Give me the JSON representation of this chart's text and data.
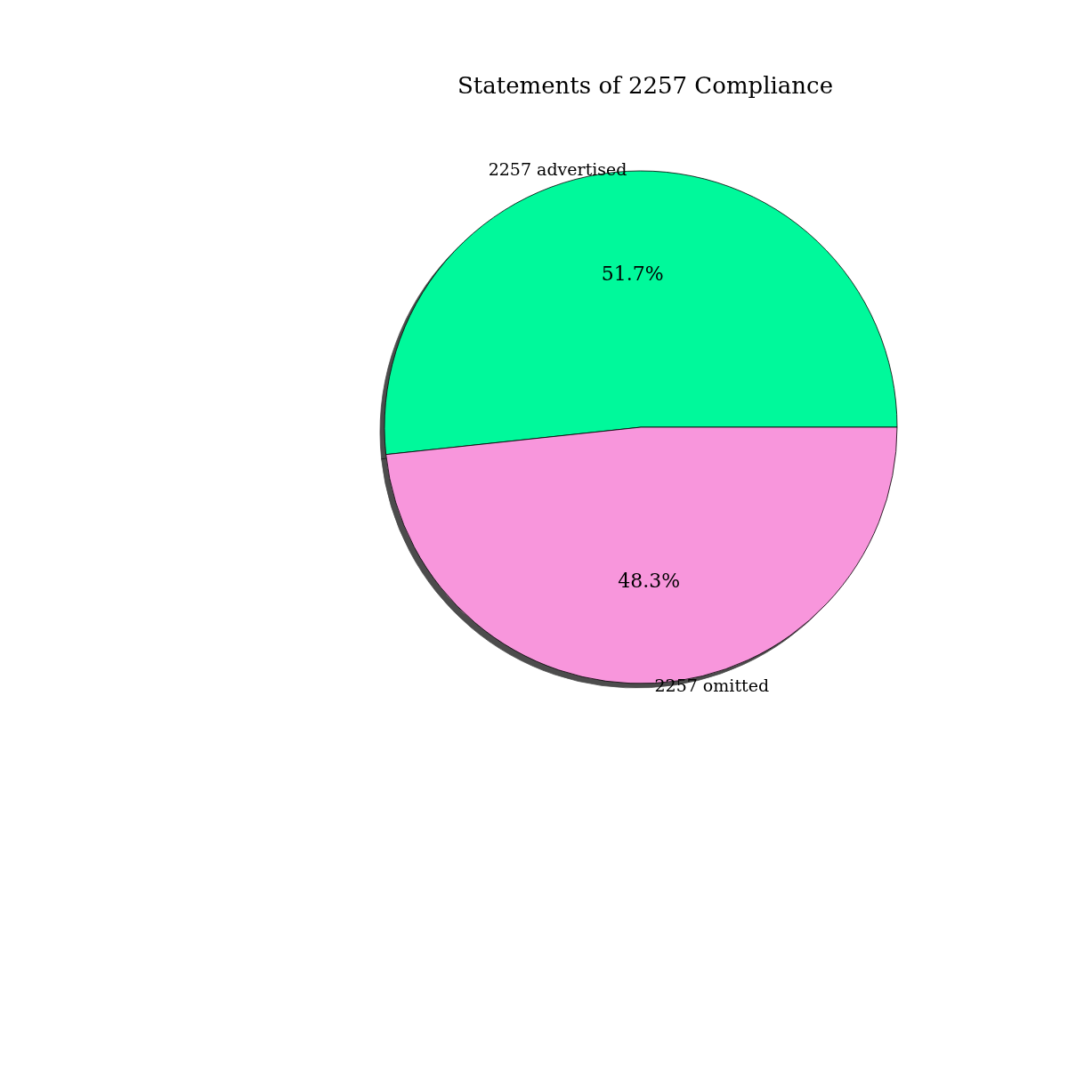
{
  "chart_data": {
    "type": "pie",
    "title": "Statements of 2257 Compliance",
    "categories": [
      "2257 advertised",
      "2257 omitted"
    ],
    "values": [
      51.7,
      48.3
    ],
    "value_labels": [
      "51.7%",
      "48.3%"
    ],
    "colors": [
      "#05f99b",
      "#f896dc"
    ],
    "legend": false
  }
}
